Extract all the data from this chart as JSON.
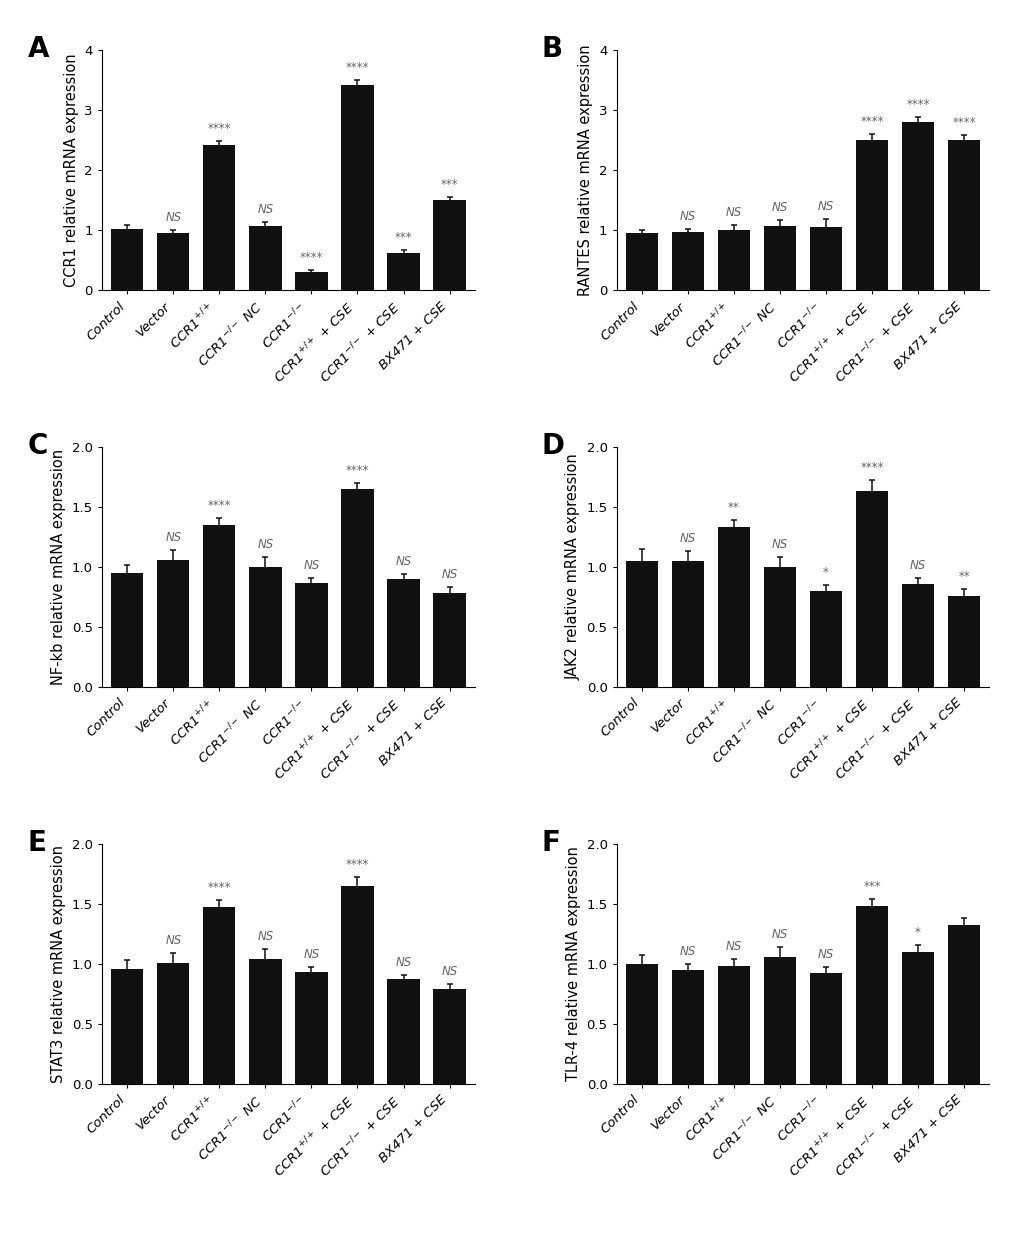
{
  "categories": [
    "Control",
    "Vector",
    "CCR1$^{+/+}$",
    "CCR1$^{-/-}$ NC",
    "CCR1$^{-/-}$",
    "CCR1$^{+/+}$ + CSE",
    "CCR1$^{-/-}$ + CSE",
    "BX471 + CSE"
  ],
  "panels": [
    {
      "label": "A",
      "ylabel": "CCR1 relative mRNA expression",
      "values": [
        1.02,
        0.95,
        2.42,
        1.07,
        0.3,
        3.42,
        0.62,
        1.5
      ],
      "errors": [
        0.07,
        0.06,
        0.06,
        0.07,
        0.04,
        0.08,
        0.05,
        0.05
      ],
      "significance": [
        "",
        "NS",
        "****",
        "NS",
        "****",
        "****",
        "***",
        "***"
      ],
      "ylim": [
        0,
        4.0
      ],
      "yticks": [
        0,
        1,
        2,
        3,
        4
      ],
      "yticklabels": [
        "0",
        "1",
        "2",
        "3",
        "4"
      ]
    },
    {
      "label": "B",
      "ylabel": "RANTES relative mRNA expression",
      "values": [
        0.95,
        0.97,
        1.0,
        1.07,
        1.06,
        2.5,
        2.8,
        2.5
      ],
      "errors": [
        0.05,
        0.05,
        0.08,
        0.1,
        0.12,
        0.1,
        0.08,
        0.08
      ],
      "significance": [
        "",
        "NS",
        "NS",
        "NS",
        "NS",
        "****",
        "****",
        "****"
      ],
      "ylim": [
        0,
        4.0
      ],
      "yticks": [
        0,
        1,
        2,
        3,
        4
      ],
      "yticklabels": [
        "0",
        "1",
        "2",
        "3",
        "4"
      ]
    },
    {
      "label": "C",
      "ylabel": "NF-kb relative mRNA expression",
      "values": [
        0.95,
        1.06,
        1.35,
        1.0,
        0.87,
        1.65,
        0.9,
        0.78
      ],
      "errors": [
        0.07,
        0.08,
        0.06,
        0.08,
        0.04,
        0.05,
        0.04,
        0.05
      ],
      "significance": [
        "",
        "NS",
        "****",
        "NS",
        "NS",
        "****",
        "NS",
        "NS"
      ],
      "ylim": [
        0,
        2.0
      ],
      "yticks": [
        0.0,
        0.5,
        1.0,
        1.5,
        2.0
      ],
      "yticklabels": [
        "0.0",
        "0.5",
        "1.0",
        "1.5",
        "2.0"
      ]
    },
    {
      "label": "D",
      "ylabel": "JAK2 relative mRNA expression",
      "values": [
        1.05,
        1.05,
        1.33,
        1.0,
        0.8,
        1.63,
        0.86,
        0.76
      ],
      "errors": [
        0.1,
        0.08,
        0.06,
        0.08,
        0.05,
        0.09,
        0.05,
        0.06
      ],
      "significance": [
        "",
        "NS",
        "**",
        "NS",
        "*",
        "****",
        "NS",
        "**"
      ],
      "ylim": [
        0,
        2.0
      ],
      "yticks": [
        0.0,
        0.5,
        1.0,
        1.5,
        2.0
      ],
      "yticklabels": [
        "0.0",
        "0.5",
        "1.0",
        "1.5",
        "2.0"
      ]
    },
    {
      "label": "E",
      "ylabel": "STAT3 relative mRNA expression",
      "values": [
        0.96,
        1.01,
        1.47,
        1.04,
        0.93,
        1.65,
        0.87,
        0.79
      ],
      "errors": [
        0.07,
        0.08,
        0.06,
        0.08,
        0.04,
        0.07,
        0.04,
        0.04
      ],
      "significance": [
        "",
        "NS",
        "****",
        "NS",
        "NS",
        "****",
        "NS",
        "NS"
      ],
      "ylim": [
        0,
        2.0
      ],
      "yticks": [
        0.0,
        0.5,
        1.0,
        1.5,
        2.0
      ],
      "yticklabels": [
        "0.0",
        "0.5",
        "1.0",
        "1.5",
        "2.0"
      ]
    },
    {
      "label": "F",
      "ylabel": "TLR-4 relative mRNA expression",
      "values": [
        1.0,
        0.95,
        0.98,
        1.06,
        0.92,
        1.48,
        1.1,
        1.32
      ],
      "errors": [
        0.07,
        0.05,
        0.06,
        0.08,
        0.05,
        0.06,
        0.06,
        0.06
      ],
      "significance": [
        "",
        "NS",
        "NS",
        "NS",
        "NS",
        "***",
        "*",
        ""
      ],
      "ylim": [
        0,
        2.0
      ],
      "yticks": [
        0.0,
        0.5,
        1.0,
        1.5,
        2.0
      ],
      "yticklabels": [
        "0.0",
        "0.5",
        "1.0",
        "1.5",
        "2.0"
      ]
    }
  ],
  "bar_color": "#111111",
  "bar_width": 0.7,
  "error_color": "#111111",
  "sig_color": "#666666",
  "background_color": "#ffffff",
  "ylabel_fontsize": 10.5,
  "tick_fontsize": 9.5,
  "sig_fontsize": 8.5,
  "panel_label_fontsize": 20
}
